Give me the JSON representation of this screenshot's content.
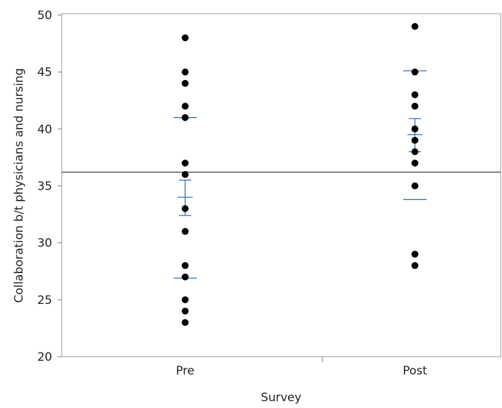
{
  "chart_data": {
    "type": "scatter",
    "xlabel": "Survey",
    "ylabel": "Collaboration b/t physicians and nursing",
    "categories": [
      "Pre",
      "Post"
    ],
    "ylim": [
      20,
      50
    ],
    "yticks": [
      "20",
      "25",
      "30",
      "35",
      "40",
      "45",
      "50"
    ],
    "grand_mean": 36.2,
    "points": {
      "Pre": [
        48,
        45,
        44,
        42,
        41,
        37,
        36,
        33,
        31,
        28,
        27,
        25,
        24,
        23
      ],
      "Post": [
        49,
        45,
        43,
        42,
        40,
        39,
        38,
        37,
        35,
        29,
        28
      ]
    },
    "group_stats": [
      {
        "category": "Pre",
        "mean": 34.0,
        "mean_ci": [
          32.4,
          35.5
        ],
        "quantile_lines": [
          41,
          26.9
        ]
      },
      {
        "category": "Post",
        "mean": 39.5,
        "mean_ci": [
          38.0,
          40.9
        ],
        "quantile_lines": [
          45.1,
          33.8
        ]
      }
    ],
    "colors": {
      "points": "#000000",
      "stats": "#2f6db5",
      "grand_mean": "#555555",
      "frame": "#9a9a9a"
    },
    "grid": false,
    "legend": "none"
  }
}
